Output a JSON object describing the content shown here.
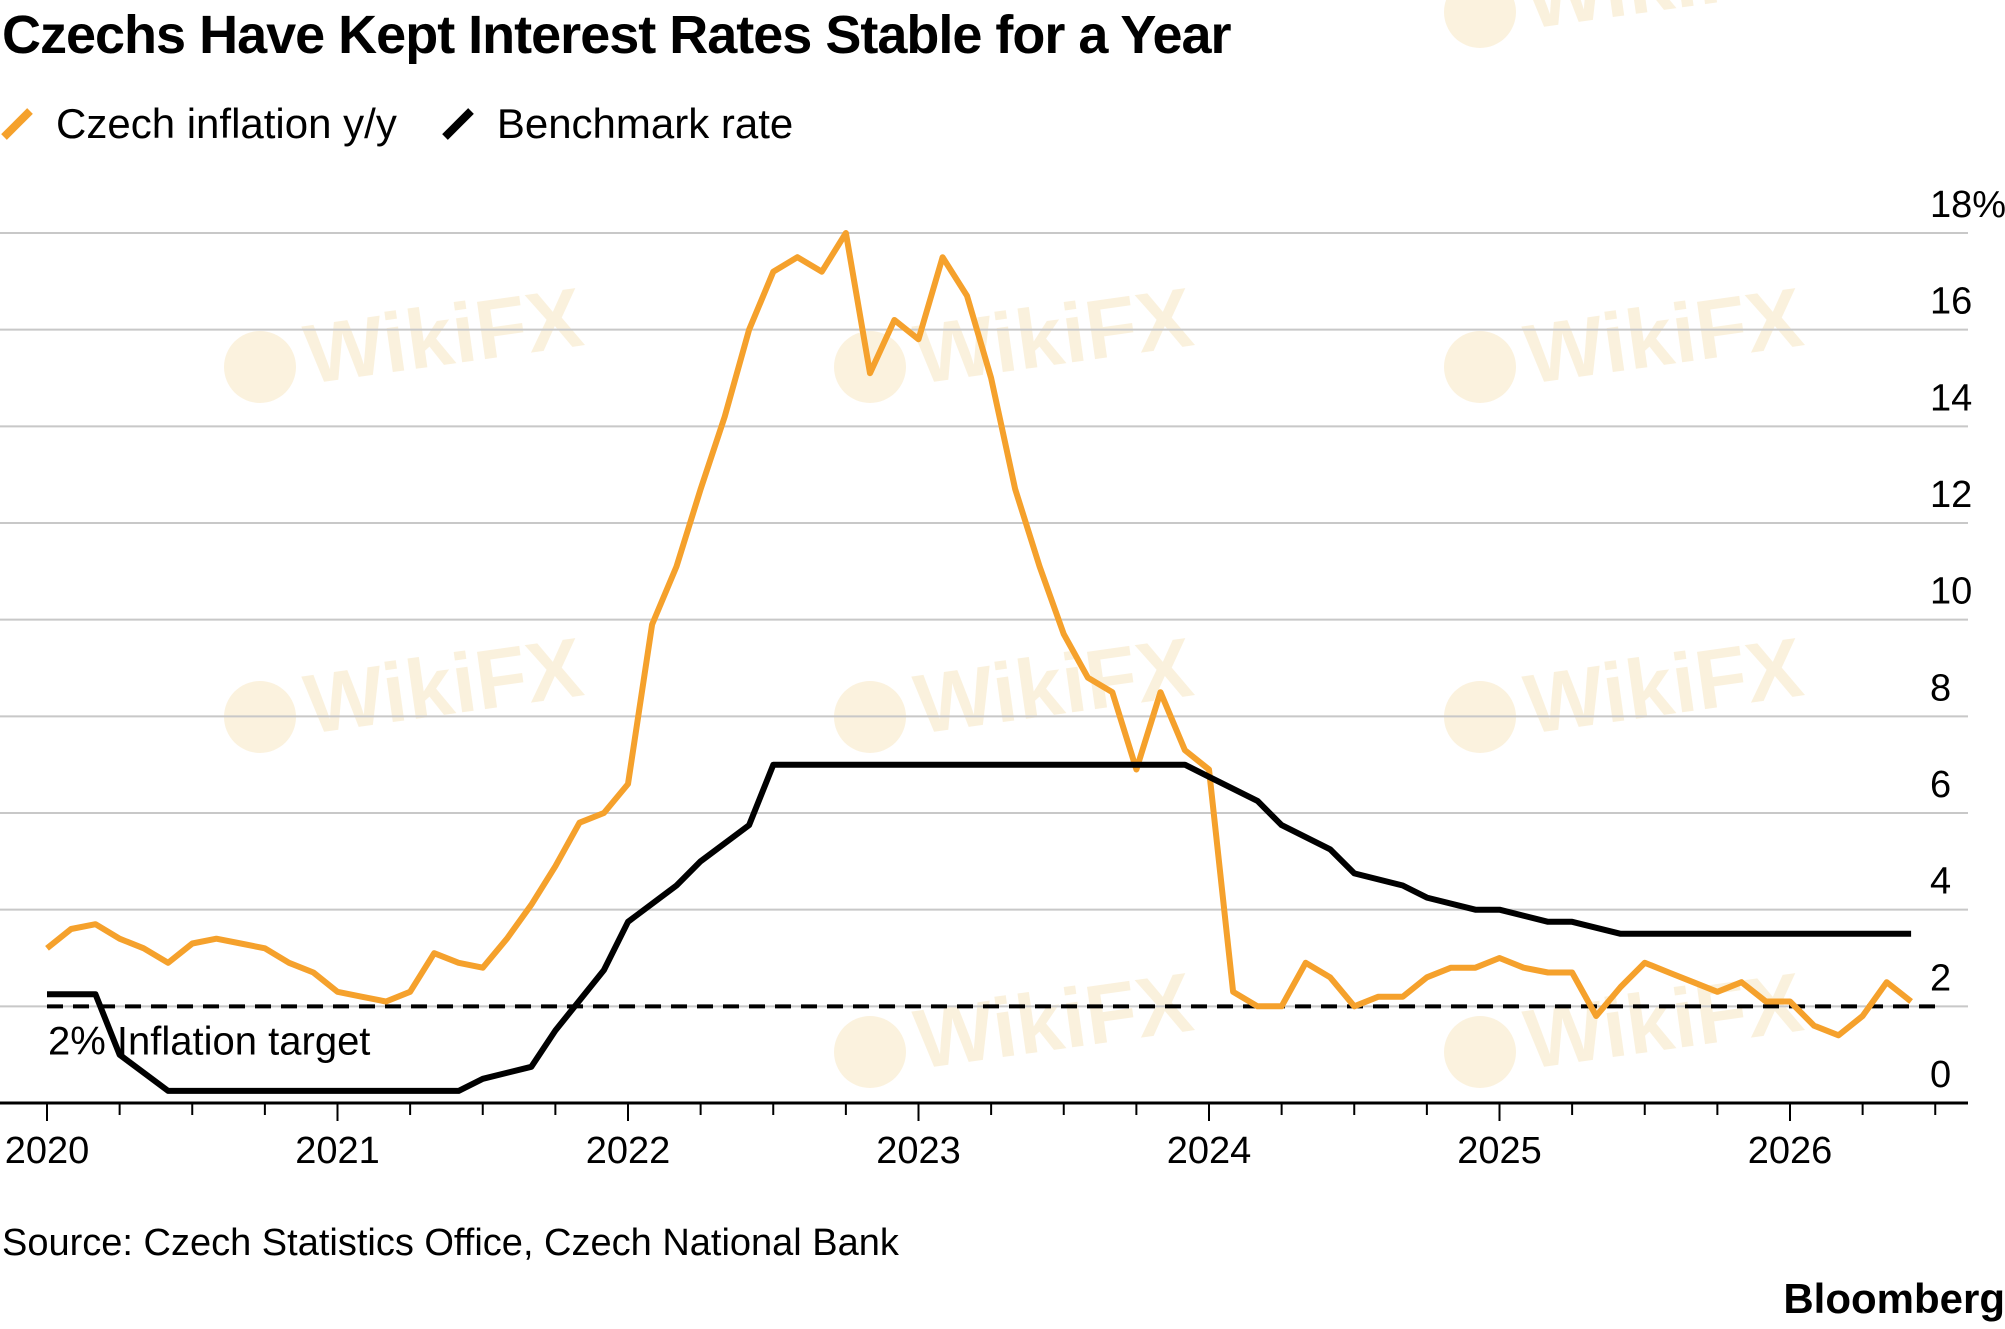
{
  "title": "Czechs Have Kept Interest Rates Stable for a Year",
  "legend": [
    {
      "label": "Czech inflation y/y",
      "color": "#f5a12c",
      "icon": "line-swatch-icon"
    },
    {
      "label": "Benchmark rate",
      "color": "#000000",
      "icon": "line-swatch-icon"
    }
  ],
  "source": "Source: Czech Statistics Office, Czech National Bank",
  "brand": "Bloomberg",
  "watermark": "WikiFX",
  "chart_data": {
    "type": "line",
    "title": "Czechs Have Kept Interest Rates Stable for a Year",
    "xlim": [
      2020,
      2026.5
    ],
    "ylim": [
      0,
      18
    ],
    "y_ticks": [
      "0",
      "2",
      "4",
      "6",
      "8",
      "10",
      "12",
      "14",
      "16",
      "18%"
    ],
    "x_ticks": [
      "2020",
      "2021",
      "2022",
      "2023",
      "2024",
      "2025",
      "2026"
    ],
    "grid": true,
    "y_axis_side": "right",
    "legend_placement": "top-left",
    "reference_line": {
      "label": "2% Inflation target",
      "y": 2
    },
    "series": [
      {
        "name": "Czech inflation y/y",
        "color": "#f5a12c",
        "x": [
          2020.0,
          2020.083,
          2020.167,
          2020.25,
          2020.333,
          2020.417,
          2020.5,
          2020.583,
          2020.667,
          2020.75,
          2020.833,
          2020.917,
          2021.0,
          2021.083,
          2021.167,
          2021.25,
          2021.333,
          2021.417,
          2021.5,
          2021.583,
          2021.667,
          2021.75,
          2021.833,
          2021.917,
          2022.0,
          2022.083,
          2022.167,
          2022.25,
          2022.333,
          2022.417,
          2022.5,
          2022.583,
          2022.667,
          2022.75,
          2022.833,
          2022.917,
          2023.0,
          2023.083,
          2023.167,
          2023.25,
          2023.333,
          2023.417,
          2023.5,
          2023.583,
          2023.667,
          2023.75,
          2023.833,
          2023.917,
          2024.0,
          2024.083,
          2024.167,
          2024.25,
          2024.333,
          2024.417,
          2024.5,
          2024.583,
          2024.667,
          2024.75,
          2024.833,
          2024.917,
          2025.0,
          2025.083,
          2025.167,
          2025.25,
          2025.333,
          2025.417,
          2025.5,
          2025.583,
          2025.667,
          2025.75,
          2025.833,
          2025.917,
          2026.0,
          2026.083,
          2026.167,
          2026.25,
          2026.333,
          2026.417
        ],
        "y": [
          3.2,
          3.6,
          3.7,
          3.4,
          3.2,
          2.9,
          3.3,
          3.4,
          3.3,
          3.2,
          2.9,
          2.7,
          2.3,
          2.2,
          2.1,
          2.3,
          3.1,
          2.9,
          2.8,
          3.4,
          4.1,
          4.9,
          5.8,
          6.0,
          6.6,
          9.9,
          11.1,
          12.7,
          14.2,
          16.0,
          17.2,
          17.5,
          17.2,
          18.0,
          15.1,
          16.2,
          15.8,
          17.5,
          16.7,
          15.0,
          12.7,
          11.1,
          9.7,
          8.8,
          8.5,
          6.9,
          8.5,
          7.3,
          6.9,
          2.3,
          2.0,
          2.0,
          2.9,
          2.6,
          2.0,
          2.2,
          2.2,
          2.6,
          2.8,
          2.8,
          3.0,
          2.8,
          2.7,
          2.7,
          1.8,
          2.4,
          2.9,
          2.7,
          2.5,
          2.3,
          2.5,
          2.1,
          2.1,
          1.6,
          1.4,
          1.8,
          2.5,
          2.1
        ]
      },
      {
        "name": "Benchmark rate",
        "color": "#000000",
        "x": [
          2020.0,
          2020.167,
          2020.25,
          2020.417,
          2021.417,
          2021.5,
          2021.667,
          2021.75,
          2021.917,
          2022.0,
          2022.167,
          2022.25,
          2022.417,
          2022.5,
          2023.917,
          2024.0,
          2024.167,
          2024.25,
          2024.417,
          2024.5,
          2024.667,
          2024.75,
          2024.917,
          2025.0,
          2025.167,
          2025.25,
          2025.417,
          2026.417
        ],
        "y": [
          2.25,
          2.25,
          1.0,
          0.25,
          0.25,
          0.5,
          0.75,
          1.5,
          2.75,
          3.75,
          4.5,
          5.0,
          5.75,
          7.0,
          7.0,
          6.75,
          6.25,
          5.75,
          5.25,
          4.75,
          4.5,
          4.25,
          4.0,
          4.0,
          3.75,
          3.75,
          3.5,
          3.5
        ]
      }
    ]
  }
}
